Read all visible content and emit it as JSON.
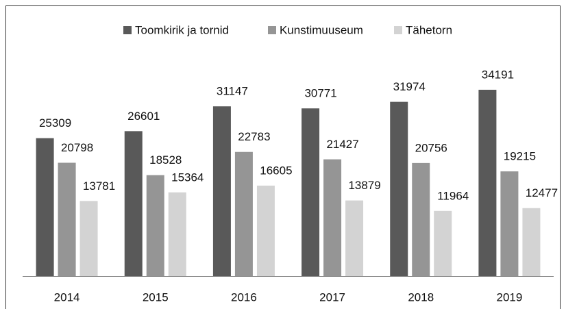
{
  "chart_data": {
    "type": "bar",
    "categories": [
      "2014",
      "2015",
      "2016",
      "2017",
      "2018",
      "2019"
    ],
    "series": [
      {
        "name": "Toomkirik ja tornid",
        "color": "#595959",
        "values": [
          25309,
          26601,
          31147,
          30771,
          31974,
          34191
        ]
      },
      {
        "name": "Kunstimuuseum",
        "color": "#959595",
        "values": [
          20798,
          18528,
          22783,
          21427,
          20756,
          19215
        ]
      },
      {
        "name": "Tähetorn",
        "color": "#d3d3d3",
        "values": [
          13781,
          15364,
          16605,
          13879,
          11964,
          12477
        ]
      }
    ],
    "legend": "top"
  }
}
